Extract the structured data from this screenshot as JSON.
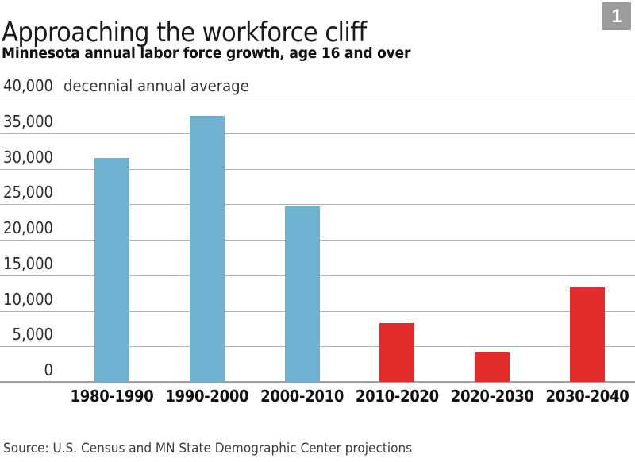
{
  "header": {
    "title": "Approaching the workforce cliff",
    "subtitle": "Minnesota annual labor force growth, age 16 and over",
    "figure_number": "1"
  },
  "chart_data": {
    "type": "bar",
    "title": "Approaching the workforce cliff",
    "subtitle": "Minnesota annual labor force growth, age 16 and over",
    "axis_note": "decennial annual average",
    "categories": [
      "1980-1990",
      "1990-2000",
      "2000-2010",
      "2010-2020",
      "2020-2030",
      "2030-2040"
    ],
    "values": [
      31500,
      37400,
      24700,
      8300,
      4100,
      13300
    ],
    "bar_colors": [
      "#6eb1d1",
      "#6eb1d1",
      "#6eb1d1",
      "#e22c2c",
      "#e22c2c",
      "#e22c2c"
    ],
    "xlabel": "",
    "ylabel": "",
    "ylim": [
      0,
      40000
    ],
    "ytick_interval": 5000,
    "ytick_labels": [
      "0",
      "5,000",
      "10,000",
      "15,000",
      "20,000",
      "25,000",
      "30,000",
      "35,000",
      "40,000"
    ],
    "grid": true,
    "legend": false
  },
  "colors": {
    "historical_blue": "#6eb1d1",
    "projection_red": "#e22c2c",
    "badge_gray": "#9b9b9b",
    "gridline_gray": "#b3b3b3",
    "baseline_gray": "#a2a2a2"
  },
  "footer": {
    "source": "Source: U.S. Census and MN State Demographic Center projections"
  }
}
